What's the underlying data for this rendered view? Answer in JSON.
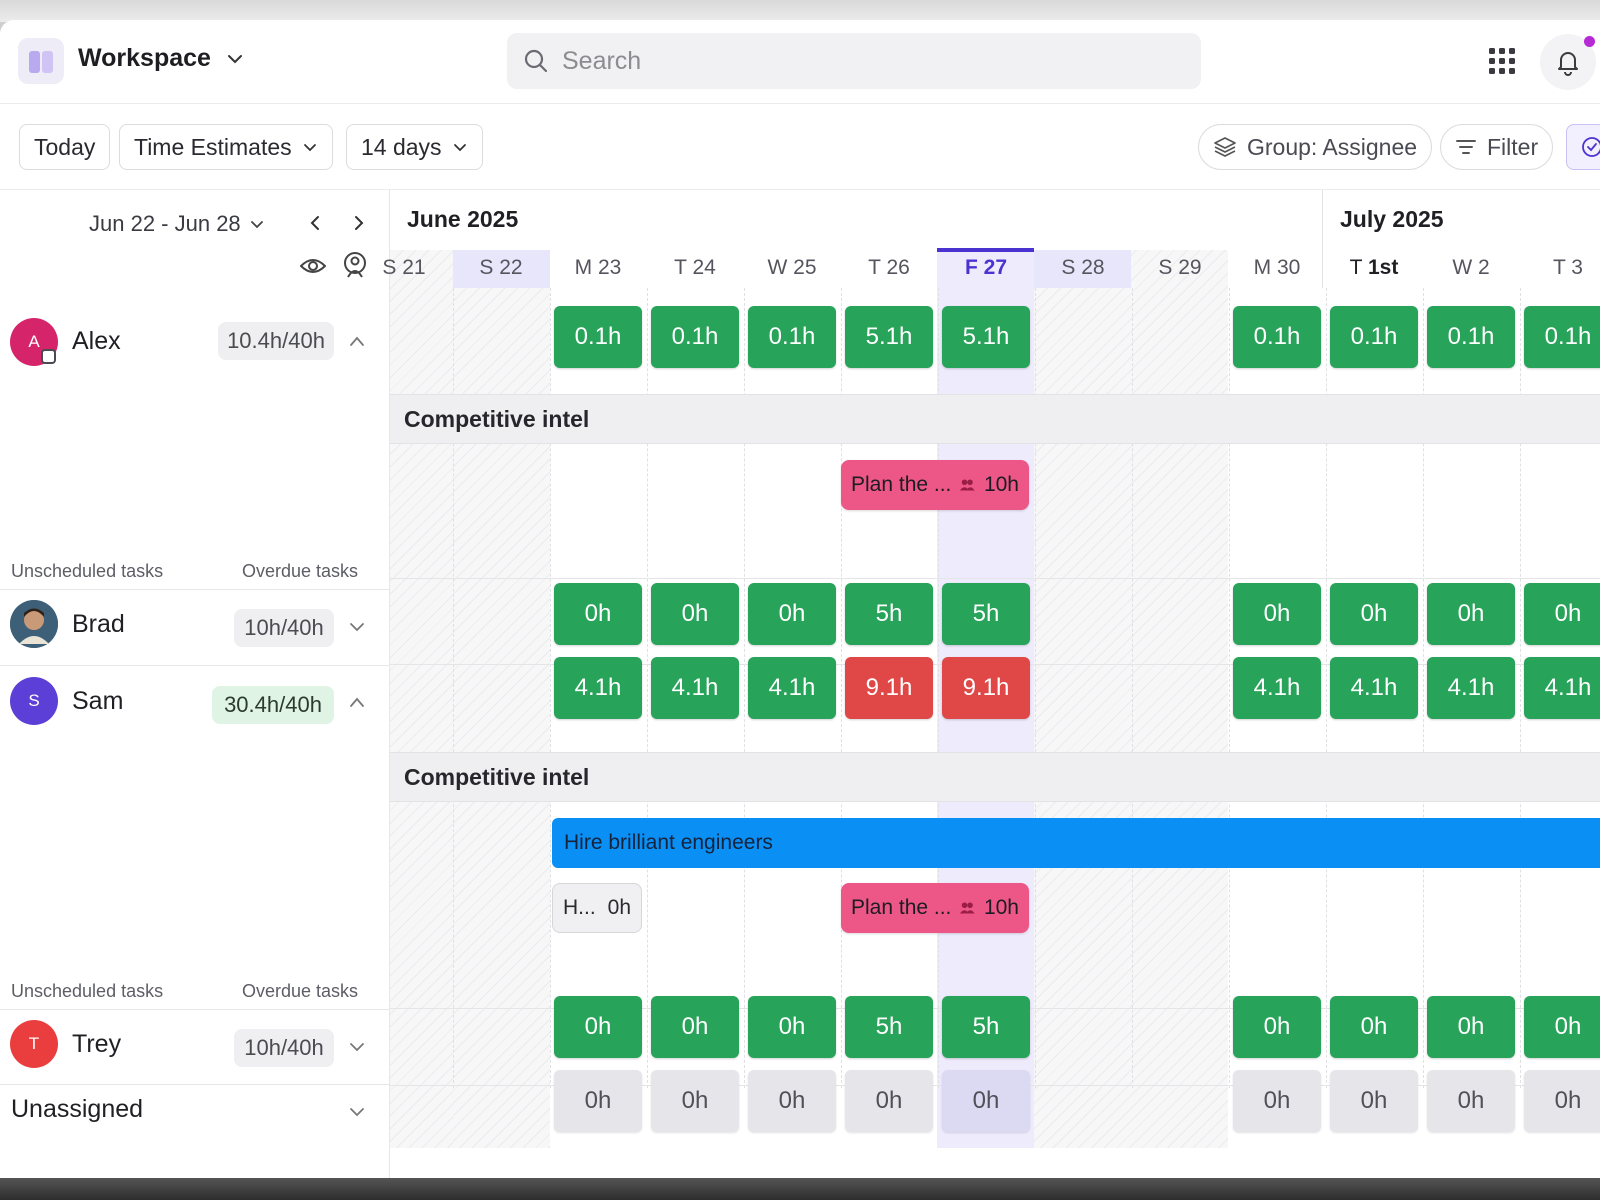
{
  "header": {
    "workspace_name": "Workspace",
    "search_placeholder": "Search"
  },
  "toolbar": {
    "today": "Today",
    "time_estimates": "Time Estimates",
    "days": "14 days",
    "group": "Group: Assignee",
    "filter": "Filter"
  },
  "left": {
    "range": "Jun 22 - Jun 28",
    "unscheduled": "Unscheduled tasks",
    "overdue": "Overdue tasks"
  },
  "calendar": {
    "months": [
      "June 2025",
      "July 2025"
    ],
    "days": [
      {
        "dow": "S",
        "num": "21"
      },
      {
        "dow": "S",
        "num": "22"
      },
      {
        "dow": "M",
        "num": "23"
      },
      {
        "dow": "T",
        "num": "24"
      },
      {
        "dow": "W",
        "num": "25"
      },
      {
        "dow": "T",
        "num": "26"
      },
      {
        "dow": "F",
        "num": "27"
      },
      {
        "dow": "S",
        "num": "28"
      },
      {
        "dow": "S",
        "num": "29"
      },
      {
        "dow": "M",
        "num": "30"
      },
      {
        "dow": "T",
        "num": "1st"
      },
      {
        "dow": "W",
        "num": "2"
      },
      {
        "dow": "T",
        "num": "3"
      }
    ]
  },
  "people": [
    {
      "name": "Alex",
      "initial": "A",
      "capacity": "10.4h/40h",
      "color": "#d5246a",
      "hours": [
        "",
        "",
        "0.1h",
        "0.1h",
        "0.1h",
        "5.1h",
        "5.1h",
        "",
        "",
        "0.1h",
        "0.1h",
        "0.1h",
        "0.1h"
      ]
    },
    {
      "name": "Brad",
      "initial": "",
      "capacity": "10h/40h",
      "color": "#4a6f8a",
      "hours": [
        "",
        "",
        "0h",
        "0h",
        "0h",
        "5h",
        "5h",
        "",
        "",
        "0h",
        "0h",
        "0h",
        "0h"
      ]
    },
    {
      "name": "Sam",
      "initial": "S",
      "capacity": "30.4h/40h",
      "color": "#5b3fd6",
      "hours": [
        "",
        "",
        "4.1h",
        "4.1h",
        "4.1h",
        "9.1h",
        "9.1h",
        "",
        "",
        "4.1h",
        "4.1h",
        "4.1h",
        "4.1h"
      ]
    },
    {
      "name": "Trey",
      "initial": "T",
      "capacity": "10h/40h",
      "color": "#ea3d3d",
      "hours": [
        "",
        "",
        "0h",
        "0h",
        "0h",
        "5h",
        "5h",
        "",
        "",
        "0h",
        "0h",
        "0h",
        "0h"
      ]
    },
    {
      "name": "Unassigned",
      "initial": "",
      "capacity": "",
      "color": "",
      "hours": [
        "",
        "",
        "0h",
        "0h",
        "0h",
        "0h",
        "0h",
        "",
        "",
        "0h",
        "0h",
        "0h",
        "0h"
      ]
    }
  ],
  "sections": [
    {
      "title": "Competitive intel"
    },
    {
      "title": "Competitive intel"
    }
  ],
  "tasks": {
    "plan_label": "Plan the ...",
    "plan_hours": "10h",
    "hire_label": "Hire brilliant engineers",
    "h_label": "H...",
    "h_hours": "0h"
  },
  "colors": {
    "green": "#27a35a",
    "red": "#e04848",
    "pink": "#ed5787",
    "blue": "#0a8ff5",
    "today_accent": "#4b33d1"
  }
}
